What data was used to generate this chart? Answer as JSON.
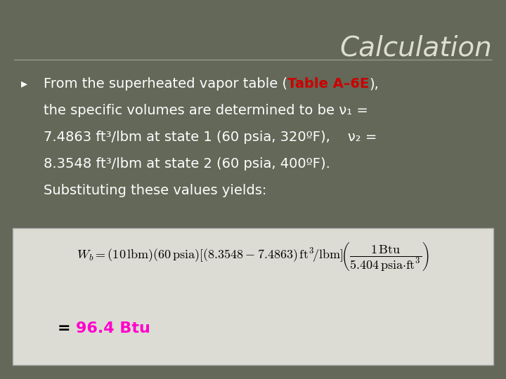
{
  "title": "Calculation",
  "title_color": "#deded0",
  "title_fontsize": 28,
  "bg_color": "#636858",
  "box_color": "#dcdcd4",
  "bullet_text_color": "white",
  "highlight_color": "#cc0000",
  "result_color": "#ff00cc",
  "font_size_body": 14,
  "font_size_result": 15,
  "lines": [
    "From the superheated vapor table (⁠Table A–6E⁠),",
    "the specific volumes are determined to be ν₁ =",
    "7.4863 ft³/lbm at state 1 (60 psia, 320ºF),    ν₂ =",
    "8.3548 ft³/lbm at state 2 (60 psia, 400ºF).",
    "Substituting these values yields:"
  ],
  "bold_phrase": "Table A–6E",
  "equation": "$W_b = (10\\,\\mathrm{lbm})(60\\,\\mathrm{psia})[(8.3548 - 7.4863)\\,\\mathrm{ft^3\\!/lbm}]\\!\\left(\\dfrac{1\\,\\mathrm{Btu}}{5.404\\,\\mathrm{psia{\\cdot}ft^3}}\\right)$",
  "result_eq": "= ",
  "result_val": "96.4 Btu"
}
